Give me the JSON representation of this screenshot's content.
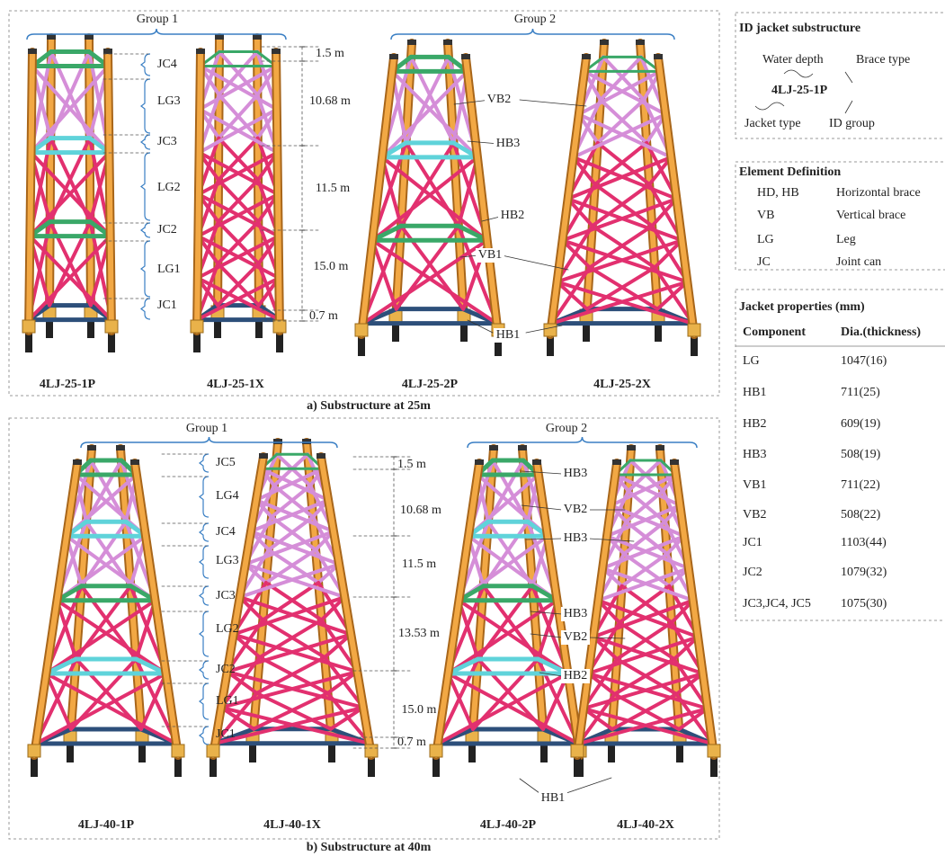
{
  "panels": [
    {
      "caption": "a) Substructure at 25m",
      "groups": [
        "Group 1",
        "Group 2"
      ],
      "jackets": [
        "4LJ-25-1P",
        "4LJ-25-1X",
        "4LJ-25-2P",
        "4LJ-25-2X"
      ],
      "segments": [
        "JC4",
        "LG3",
        "JC3",
        "LG2",
        "JC2",
        "LG1",
        "JC1"
      ],
      "heights": [
        "1.5 m",
        "10.68 m",
        "11.5 m",
        "15.0 m",
        "0.7 m"
      ],
      "elements": [
        "VB2",
        "HB3",
        "HB2",
        "VB1",
        "HB1"
      ]
    },
    {
      "caption": "b) Substructure at 40m",
      "groups": [
        "Group 1",
        "Group 2"
      ],
      "jackets": [
        "4LJ-40-1P",
        "4LJ-40-1X",
        "4LJ-40-2P",
        "4LJ-40-2X"
      ],
      "segments": [
        "JC5",
        "LG4",
        "JC4",
        "LG3",
        "JC3",
        "LG2",
        "JC2",
        "LG1",
        "JC1"
      ],
      "heights": [
        "1.5 m",
        "10.68 m",
        "11.5 m",
        "13.53 m",
        "15.0 m",
        "0.7 m"
      ],
      "elements": [
        "HB3",
        "VB2",
        "HB3",
        "HB3",
        "VB2",
        "HB2",
        "HB1"
      ]
    }
  ],
  "id_box": {
    "title": "ID jacket substructure",
    "code": "4LJ-25-1P",
    "water_depth": "Water depth",
    "brace_type": "Brace type",
    "jacket_type": "Jacket type",
    "id_group": "ID group"
  },
  "element_definition": {
    "title": "Element Definition",
    "rows": [
      [
        "HD, HB",
        "Horizontal brace"
      ],
      [
        "VB",
        "Vertical brace"
      ],
      [
        "LG",
        "Leg"
      ],
      [
        "JC",
        "Joint can"
      ]
    ]
  },
  "properties": {
    "title": "Jacket properties (mm)",
    "header": [
      "Component",
      "Dia.(thickness)"
    ],
    "rows": [
      [
        "LG",
        "1047(16)"
      ],
      [
        "HB1",
        "711(25)"
      ],
      [
        "HB2",
        "609(19)"
      ],
      [
        "HB3",
        "508(19)"
      ],
      [
        "VB1",
        "711(22)"
      ],
      [
        "VB2",
        "508(22)"
      ],
      [
        "JC1",
        "1103(44)"
      ],
      [
        "JC2",
        "1079(32)"
      ],
      [
        "JC3,JC4, JC5",
        "1075(30)"
      ]
    ]
  }
}
